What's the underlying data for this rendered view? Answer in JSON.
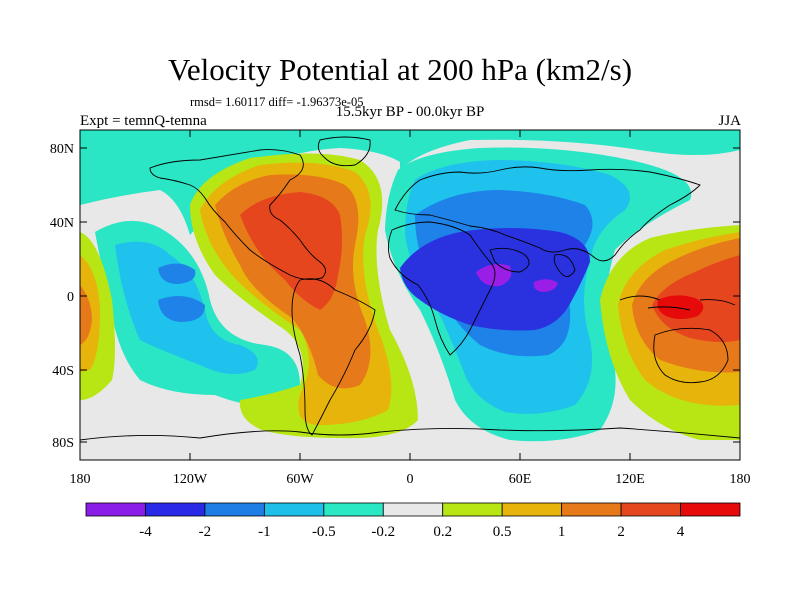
{
  "title": "Velocity Potential at 200 hPa (km2/s)",
  "stats": "rmsd= 1.60117 diff= -1.96373e-05",
  "period": "15.5kyr BP - 00.0kyr BP",
  "expt": "Expt = temnQ-temna",
  "season": "JJA",
  "axes": {
    "x_ticks": [
      "180",
      "120W",
      "60W",
      "0",
      "60E",
      "120E",
      "180"
    ],
    "y_ticks": [
      "80N",
      "40N",
      "0",
      "40S",
      "80S"
    ]
  },
  "colorbar": {
    "labels": [
      "-4",
      "-2",
      "-1",
      "-0.5",
      "-0.2",
      "0.2",
      "0.5",
      "1",
      "2",
      "4"
    ],
    "colors": [
      "#8a1ee8",
      "#2a2ae6",
      "#1e7ee6",
      "#1ec0ea",
      "#2ae8c4",
      "#e8e8e8",
      "#b8e614",
      "#e6b40a",
      "#e67a1a",
      "#e6461e",
      "#e60a0a"
    ]
  },
  "palette": {
    "c_m4": "#9a1ee6",
    "c_m2": "#2a32e0",
    "c_m1": "#1e82e8",
    "c_m05": "#1ec2ec",
    "c_m02": "#2ae6c4",
    "c_0": "#e8e8e8",
    "c_02": "#b8e614",
    "c_05": "#e6b40a",
    "c_1": "#e67a1a",
    "c_2": "#e6461e",
    "c_4": "#e60a0a"
  }
}
